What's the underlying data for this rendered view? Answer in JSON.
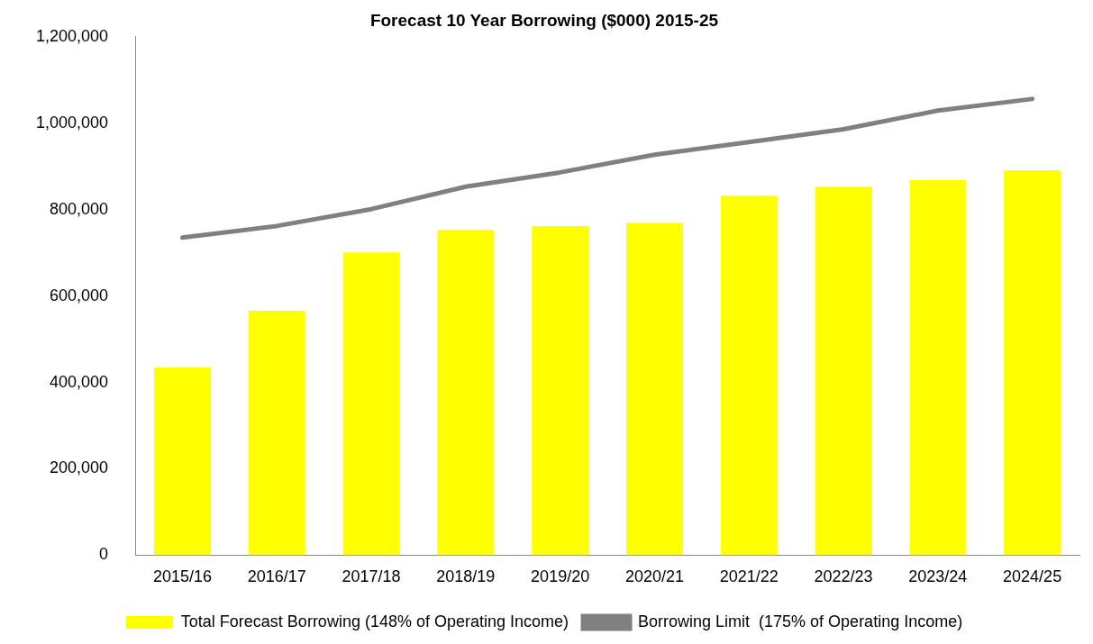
{
  "chart_data": {
    "type": "bar",
    "title": "Forecast 10 Year Borrowing ($000) 2015-25",
    "categories": [
      "2015/16",
      "2016/17",
      "2017/18",
      "2018/19",
      "2019/20",
      "2020/21",
      "2021/22",
      "2022/23",
      "2023/24",
      "2024/25"
    ],
    "series": [
      {
        "name": "Total Forecast Borrowing (148% of Operating Income)",
        "color": "#ffff00",
        "values": [
          435000,
          566000,
          701000,
          753000,
          762000,
          769000,
          832000,
          853000,
          868000,
          891000
        ]
      },
      {
        "name": "Borrowing Limit  (175% of Operating Income)",
        "type": "line",
        "color": "#808080",
        "values": [
          735000,
          762000,
          801000,
          853000,
          886000,
          927000,
          956000,
          986000,
          1029000,
          1056000
        ]
      }
    ],
    "ylim": [
      0,
      1200000
    ],
    "yticks": [
      {
        "value": 0,
        "label": "0"
      },
      {
        "value": 200000,
        "label": "200,000"
      },
      {
        "value": 400000,
        "label": "400,000"
      },
      {
        "value": 600000,
        "label": "600,000"
      },
      {
        "value": 800000,
        "label": "800,000"
      },
      {
        "value": 1000000,
        "label": "1,000,000"
      },
      {
        "value": 1200000,
        "label": "1,200,000"
      }
    ],
    "grid": false,
    "legend": "bottom",
    "marker": "none"
  }
}
